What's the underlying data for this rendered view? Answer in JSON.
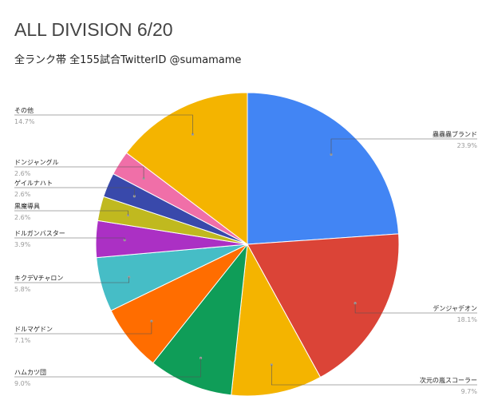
{
  "chart_data": {
    "type": "pie",
    "title": "ALL DIVISION 6/20",
    "subtitle": "全ランク帯 全155試合TwitterID @sumamame",
    "slices": [
      {
        "label": "蟲蟲蟲ブランド",
        "pct_label": "23.9%",
        "value": 23.9,
        "color": "#4285f4"
      },
      {
        "label": "デンジャデオン",
        "pct_label": "18.1%",
        "value": 18.1,
        "color": "#db4437"
      },
      {
        "label": "次元の嵐スコーラー",
        "pct_label": "9.7%",
        "value": 9.7,
        "color": "#f4b400"
      },
      {
        "label": "ハムカツ団",
        "pct_label": "9.0%",
        "value": 9.0,
        "color": "#0f9d58"
      },
      {
        "label": "ドルマゲドン",
        "pct_label": "7.1%",
        "value": 7.1,
        "color": "#ff6d00"
      },
      {
        "label": "キクデVチャロン",
        "pct_label": "5.8%",
        "value": 5.8,
        "color": "#46bdc6"
      },
      {
        "label": "ドルガンバスター",
        "pct_label": "3.9%",
        "value": 3.9,
        "color": "#ab30c4"
      },
      {
        "label": "黒魔導具",
        "pct_label": "2.6%",
        "value": 2.6,
        "color": "#c0b91f"
      },
      {
        "label": "ゲイルナハト",
        "pct_label": "2.6%",
        "value": 2.6,
        "color": "#3949ab"
      },
      {
        "label": "ドンジャングル",
        "pct_label": "2.6%",
        "value": 2.6,
        "color": "#f06fa8"
      },
      {
        "label": "その他",
        "pct_label": "14.7%",
        "value": 14.7,
        "color": "#f4b400"
      }
    ],
    "legend": "none",
    "start_angle": "12 o'clock",
    "direction": "clockwise"
  }
}
